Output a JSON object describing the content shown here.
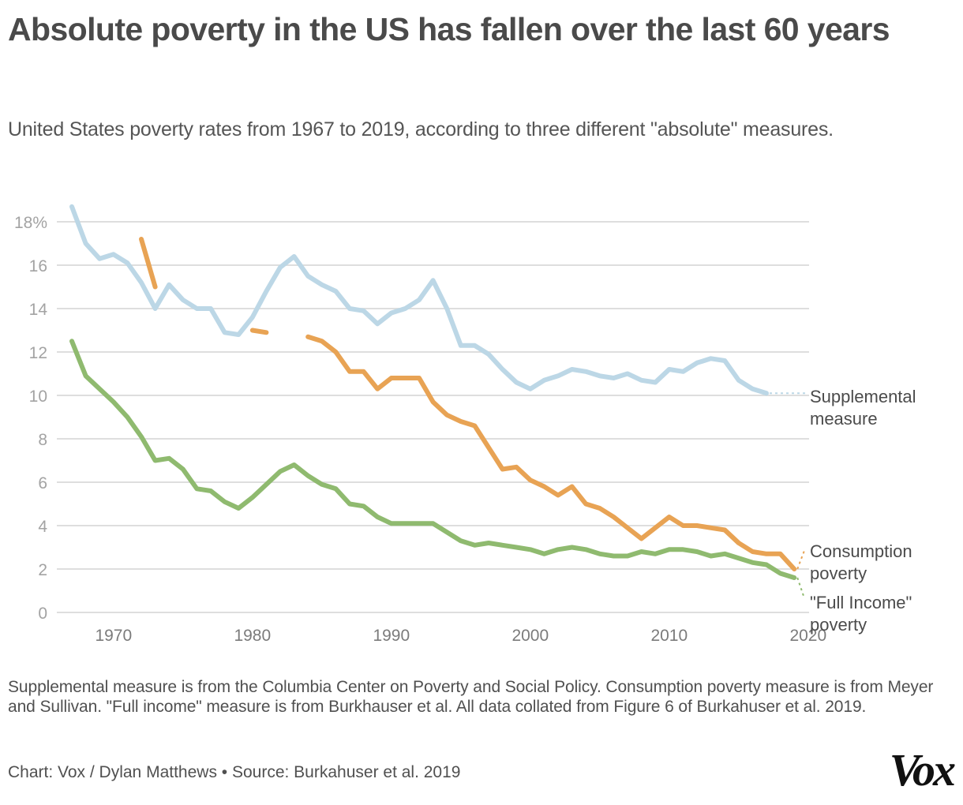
{
  "header": {
    "title": "Absolute poverty in the US has fallen over the last 60 years",
    "subtitle": "United States poverty rates from 1967 to 2019, according to three different \"absolute\" measures."
  },
  "footer": {
    "note": "Supplemental measure is from the Columbia Center on Poverty and Social Policy. Consumption poverty measure is from Meyer and Sullivan. \"Full income\" measure is from Burkhauser et al. All data collated from Figure 6 of Burkahuser et al. 2019.",
    "credit": "Chart: Vox / Dylan Matthews • Source: Burkahuser et al. 2019",
    "logo": "Vox"
  },
  "chart_data": {
    "type": "line",
    "title": "Absolute poverty in the US has fallen over the last 60 years",
    "xlabel": "",
    "ylabel": "",
    "xlim": [
      1965.8,
      2020
    ],
    "ylim": [
      0,
      18
    ],
    "grid": true,
    "x_ticks": [
      1970,
      1980,
      1990,
      2000,
      2010,
      2020
    ],
    "x_tick_labels": [
      "1970",
      "1980",
      "1990",
      "2000",
      "2010",
      "2020"
    ],
    "y_ticks": [
      0,
      2,
      4,
      6,
      8,
      10,
      12,
      14,
      16,
      18
    ],
    "y_tick_labels": [
      "0",
      "2",
      "4",
      "6",
      "8",
      "10",
      "12",
      "14",
      "16",
      "18%"
    ],
    "legend": "direct labels at right end of lines",
    "series": [
      {
        "name": "Supplemental measure",
        "label_lines": [
          "Supplemental",
          "measure"
        ],
        "color": "#bcd7e6",
        "points": [
          [
            1967,
            18.7
          ],
          [
            1968,
            17.0
          ],
          [
            1969,
            16.3
          ],
          [
            1970,
            16.5
          ],
          [
            1971,
            16.1
          ],
          [
            1972,
            15.2
          ],
          [
            1973,
            14.0
          ],
          [
            1974,
            15.1
          ],
          [
            1975,
            14.4
          ],
          [
            1976,
            14.0
          ],
          [
            1977,
            14.0
          ],
          [
            1978,
            12.9
          ],
          [
            1979,
            12.8
          ],
          [
            1980,
            13.6
          ],
          [
            1981,
            14.8
          ],
          [
            1982,
            15.9
          ],
          [
            1983,
            16.4
          ],
          [
            1984,
            15.5
          ],
          [
            1985,
            15.1
          ],
          [
            1986,
            14.8
          ],
          [
            1987,
            14.0
          ],
          [
            1988,
            13.9
          ],
          [
            1989,
            13.3
          ],
          [
            1990,
            13.8
          ],
          [
            1991,
            14.0
          ],
          [
            1992,
            14.4
          ],
          [
            1993,
            15.3
          ],
          [
            1994,
            14.0
          ],
          [
            1995,
            12.3
          ],
          [
            1996,
            12.3
          ],
          [
            1997,
            11.9
          ],
          [
            1998,
            11.2
          ],
          [
            1999,
            10.6
          ],
          [
            2000,
            10.3
          ],
          [
            2001,
            10.7
          ],
          [
            2002,
            10.9
          ],
          [
            2003,
            11.2
          ],
          [
            2004,
            11.1
          ],
          [
            2005,
            10.9
          ],
          [
            2006,
            10.8
          ],
          [
            2007,
            11.0
          ],
          [
            2008,
            10.7
          ],
          [
            2009,
            10.6
          ],
          [
            2010,
            11.2
          ],
          [
            2011,
            11.1
          ],
          [
            2012,
            11.5
          ],
          [
            2013,
            11.7
          ],
          [
            2014,
            11.6
          ],
          [
            2015,
            10.7
          ],
          [
            2016,
            10.3
          ],
          [
            2017,
            10.1
          ]
        ]
      },
      {
        "name": "Consumption poverty",
        "label_lines": [
          "Consumption",
          "poverty"
        ],
        "color": "#e8a354",
        "segments": [
          [
            [
              1972,
              17.2
            ],
            [
              1973,
              15.0
            ]
          ],
          [
            [
              1980,
              13.0
            ],
            [
              1981,
              12.9
            ]
          ],
          [
            [
              1984,
              12.7
            ],
            [
              1985,
              12.5
            ],
            [
              1986,
              12.0
            ],
            [
              1987,
              11.1
            ],
            [
              1988,
              11.1
            ],
            [
              1989,
              10.3
            ],
            [
              1990,
              10.8
            ],
            [
              1991,
              10.8
            ],
            [
              1992,
              10.8
            ],
            [
              1993,
              9.7
            ],
            [
              1994,
              9.1
            ],
            [
              1995,
              8.8
            ],
            [
              1996,
              8.6
            ],
            [
              1997,
              7.6
            ],
            [
              1998,
              6.6
            ],
            [
              1999,
              6.7
            ],
            [
              2000,
              6.1
            ],
            [
              2001,
              5.8
            ],
            [
              2002,
              5.4
            ],
            [
              2003,
              5.8
            ],
            [
              2004,
              5.0
            ],
            [
              2005,
              4.8
            ],
            [
              2006,
              4.4
            ],
            [
              2007,
              3.9
            ],
            [
              2008,
              3.4
            ],
            [
              2009,
              3.9
            ],
            [
              2010,
              4.4
            ],
            [
              2011,
              4.0
            ],
            [
              2012,
              4.0
            ],
            [
              2013,
              3.9
            ],
            [
              2014,
              3.8
            ],
            [
              2015,
              3.2
            ],
            [
              2016,
              2.8
            ],
            [
              2017,
              2.7
            ],
            [
              2018,
              2.7
            ],
            [
              2019,
              2.0
            ]
          ]
        ]
      },
      {
        "name": "\"Full Income\" poverty",
        "label_lines": [
          "\"Full Income\"",
          "poverty"
        ],
        "color": "#8fba6f",
        "points": [
          [
            1967,
            12.5
          ],
          [
            1968,
            10.9
          ],
          [
            1969,
            10.3
          ],
          [
            1970,
            9.7
          ],
          [
            1971,
            9.0
          ],
          [
            1972,
            8.1
          ],
          [
            1973,
            7.0
          ],
          [
            1974,
            7.1
          ],
          [
            1975,
            6.6
          ],
          [
            1976,
            5.7
          ],
          [
            1977,
            5.6
          ],
          [
            1978,
            5.1
          ],
          [
            1979,
            4.8
          ],
          [
            1980,
            5.3
          ],
          [
            1981,
            5.9
          ],
          [
            1982,
            6.5
          ],
          [
            1983,
            6.8
          ],
          [
            1984,
            6.3
          ],
          [
            1985,
            5.9
          ],
          [
            1986,
            5.7
          ],
          [
            1987,
            5.0
          ],
          [
            1988,
            4.9
          ],
          [
            1989,
            4.4
          ],
          [
            1990,
            4.1
          ],
          [
            1991,
            4.1
          ],
          [
            1992,
            4.1
          ],
          [
            1993,
            4.1
          ],
          [
            1994,
            3.7
          ],
          [
            1995,
            3.3
          ],
          [
            1996,
            3.1
          ],
          [
            1997,
            3.2
          ],
          [
            1998,
            3.1
          ],
          [
            1999,
            3.0
          ],
          [
            2000,
            2.9
          ],
          [
            2001,
            2.7
          ],
          [
            2002,
            2.9
          ],
          [
            2003,
            3.0
          ],
          [
            2004,
            2.9
          ],
          [
            2005,
            2.7
          ],
          [
            2006,
            2.6
          ],
          [
            2007,
            2.6
          ],
          [
            2008,
            2.8
          ],
          [
            2009,
            2.7
          ],
          [
            2010,
            2.9
          ],
          [
            2011,
            2.9
          ],
          [
            2012,
            2.8
          ],
          [
            2013,
            2.6
          ],
          [
            2014,
            2.7
          ],
          [
            2015,
            2.5
          ],
          [
            2016,
            2.3
          ],
          [
            2017,
            2.2
          ],
          [
            2018,
            1.8
          ],
          [
            2019,
            1.6
          ]
        ]
      }
    ]
  }
}
